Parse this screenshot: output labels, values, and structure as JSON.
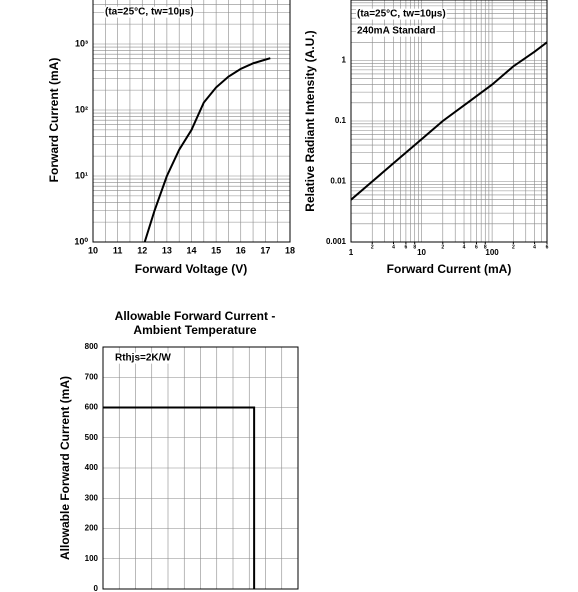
{
  "chart_data": [
    {
      "type": "line",
      "xlabel": "Forward Voltage (V)",
      "ylabel": "Forward Current (mA)",
      "annotations": [
        "(ta=25°C, tw=10µs)"
      ],
      "xscale": "linear",
      "yscale": "log",
      "xlim": [
        10,
        18
      ],
      "ylim": [
        1,
        10000
      ],
      "xticks": [
        10,
        11,
        12,
        13,
        14,
        15,
        16,
        17,
        18
      ],
      "yticks": [
        {
          "value": 1,
          "label": "10⁰"
        },
        {
          "value": 10,
          "label": "10¹"
        },
        {
          "value": 100,
          "label": "10²"
        },
        {
          "value": 1000,
          "label": "10³"
        }
      ],
      "grid": true,
      "color": "#000000",
      "x": [
        12.1,
        12.5,
        13,
        13.5,
        14,
        14.5,
        15,
        15.5,
        16,
        16.5,
        17,
        17.2
      ],
      "values": [
        1,
        3,
        10,
        25,
        50,
        130,
        220,
        320,
        420,
        510,
        580,
        610
      ]
    },
    {
      "type": "line",
      "xlabel": "Forward Current (mA)",
      "ylabel": "Relative Radiant Intensity (A.U.)",
      "annotations": [
        "(ta=25°C, tw=10µs)",
        "240mA Standard"
      ],
      "xscale": "log",
      "yscale": "log",
      "xlim": [
        1,
        600
      ],
      "ylim": [
        0.001,
        10
      ],
      "xticks": [
        1,
        10,
        100
      ],
      "xticks_minor_labels": [
        2,
        4,
        6,
        8,
        {
          "value": 20,
          "label": "2"
        },
        {
          "value": 40,
          "label": "4"
        },
        {
          "value": 60,
          "label": "6"
        },
        {
          "value": 80,
          "label": "8"
        },
        {
          "value": 200,
          "label": "2"
        },
        {
          "value": 400,
          "label": "4"
        },
        {
          "value": 600,
          "label": "6"
        }
      ],
      "yticks": [
        0.001,
        0.01,
        0.1,
        1
      ],
      "grid": true,
      "color": "#000000",
      "x": [
        1,
        2,
        5,
        10,
        20,
        50,
        100,
        200,
        400,
        600
      ],
      "values": [
        0.005,
        0.01,
        0.025,
        0.05,
        0.1,
        0.22,
        0.4,
        0.8,
        1.4,
        2
      ]
    },
    {
      "type": "line",
      "title": [
        "Allowable Forward Current -",
        "Ambient Temperature"
      ],
      "ylabel": "Allowable Forward Current (mA)",
      "annotations": [
        "Rthjs=2K/W"
      ],
      "xscale": "linear",
      "yscale": "linear",
      "xlim": [
        -40,
        120
      ],
      "ylim": [
        0,
        800
      ],
      "yticks": [
        0,
        100,
        200,
        300,
        400,
        500,
        600,
        700,
        800
      ],
      "grid": true,
      "color": "#000000",
      "x": [
        -40,
        84,
        84
      ],
      "values": [
        600,
        600,
        0
      ]
    }
  ]
}
